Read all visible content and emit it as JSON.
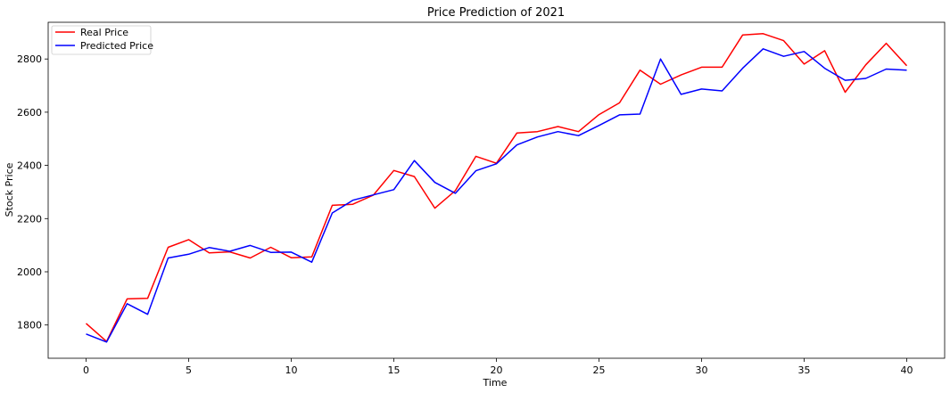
{
  "chart_data": {
    "type": "line",
    "title": "Price Prediction of 2021",
    "xlabel": "Time",
    "ylabel": "Stock Price",
    "xlim": [
      -1.85,
      41.85
    ],
    "ylim": [
      1675,
      2938
    ],
    "xticks": [
      0,
      5,
      10,
      15,
      20,
      25,
      30,
      35,
      40
    ],
    "yticks": [
      1800,
      2000,
      2200,
      2400,
      2600,
      2800
    ],
    "grid": false,
    "legend_position": "top-left",
    "x": [
      0,
      1,
      2,
      3,
      4,
      5,
      6,
      7,
      8,
      9,
      10,
      11,
      12,
      13,
      14,
      15,
      16,
      17,
      18,
      19,
      20,
      21,
      22,
      23,
      24,
      25,
      26,
      27,
      28,
      29,
      30,
      31,
      32,
      33,
      34,
      35,
      36,
      37,
      38,
      39,
      40
    ],
    "series": [
      {
        "name": "Real Price",
        "color": "#ff0000",
        "values": [
          1806,
          1738,
          1898,
          1900,
          2092,
          2121,
          2071,
          2075,
          2052,
          2092,
          2053,
          2056,
          2250,
          2254,
          2288,
          2381,
          2358,
          2239,
          2305,
          2434,
          2408,
          2522,
          2527,
          2546,
          2527,
          2591,
          2635,
          2758,
          2705,
          2740,
          2769,
          2769,
          2890,
          2895,
          2869,
          2781,
          2831,
          2675,
          2778,
          2859,
          2775
        ]
      },
      {
        "name": "Predicted Price",
        "color": "#0000ff",
        "values": [
          1766,
          1736,
          1880,
          1840,
          2052,
          2066,
          2091,
          2077,
          2099,
          2073,
          2074,
          2036,
          2221,
          2269,
          2289,
          2309,
          2418,
          2336,
          2295,
          2380,
          2406,
          2477,
          2507,
          2527,
          2512,
          2550,
          2590,
          2593,
          2800,
          2667,
          2687,
          2680,
          2765,
          2838,
          2810,
          2828,
          2765,
          2720,
          2727,
          2762,
          2758
        ]
      }
    ]
  }
}
